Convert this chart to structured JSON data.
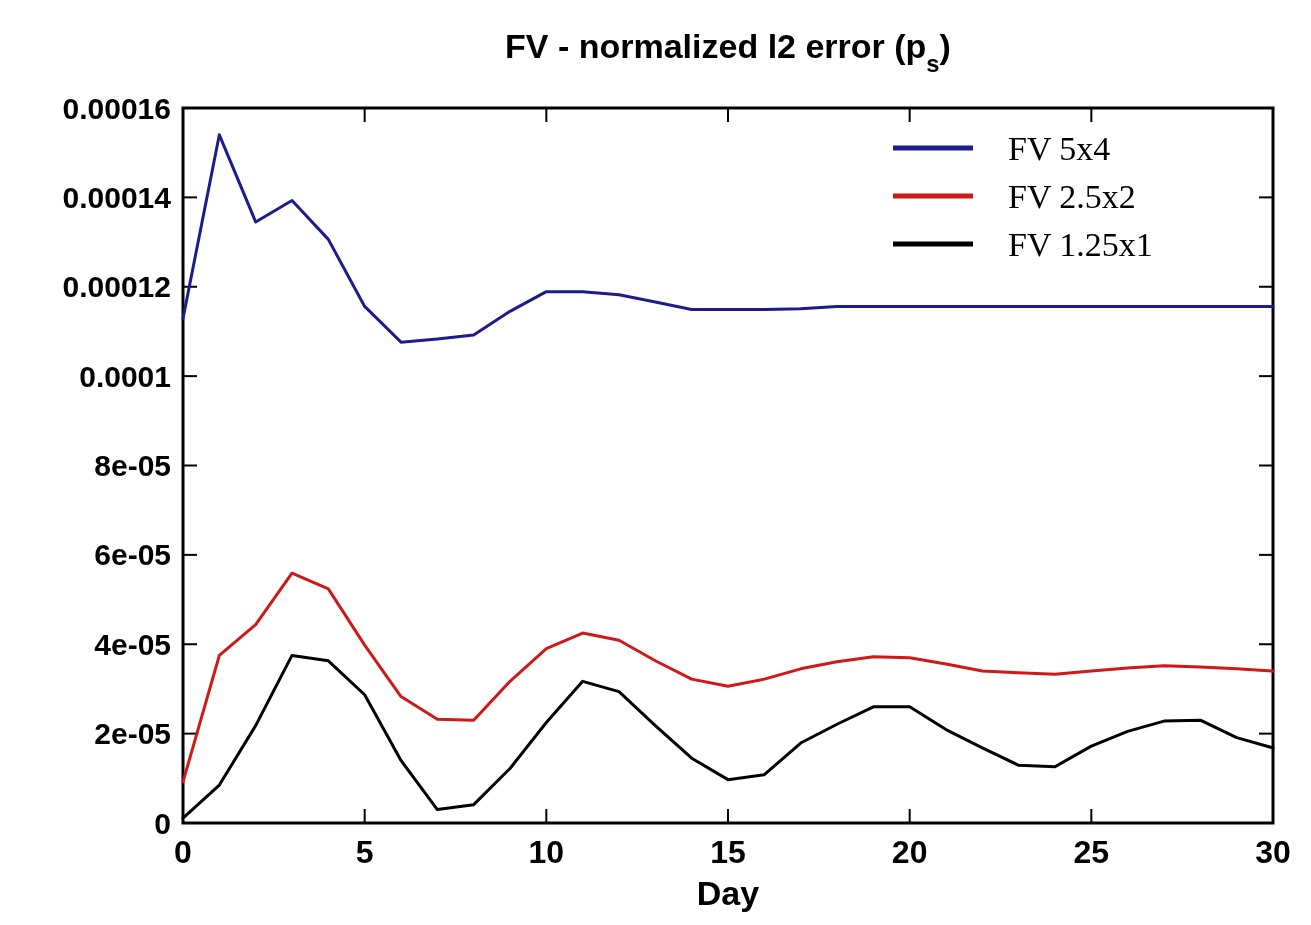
{
  "chart_data": {
    "type": "line",
    "title": "FV - normalized l2 error (p$_{s}$)",
    "xlabel": "Day",
    "x": [
      0,
      1,
      2,
      3,
      4,
      5,
      6,
      7,
      8,
      9,
      10,
      11,
      12,
      13,
      14,
      15,
      16,
      17,
      18,
      19,
      20,
      21,
      22,
      23,
      24,
      25,
      26,
      27,
      28,
      29,
      30
    ],
    "xlim": [
      0,
      30
    ],
    "xticks": [
      0,
      5,
      10,
      15,
      20,
      25,
      30
    ],
    "ylim": [
      0,
      0.00016
    ],
    "yticks": [
      0,
      {
        "value": 2e-05,
        "label": "2e-05"
      },
      {
        "value": 4e-05,
        "label": "4e-05"
      },
      {
        "value": 6e-05,
        "label": "6e-05"
      },
      {
        "value": 8e-05,
        "label": "8e-05"
      },
      0.0001,
      0.00012,
      0.00014,
      0.00016
    ],
    "grid": false,
    "legend": "top right",
    "line_style": "solid",
    "marker": "none",
    "series": [
      {
        "name": "FV 5x4",
        "color": "#1c1c8c",
        "values": [
          0.0001129,
          0.000154,
          0.0001345,
          0.0001393,
          0.0001306,
          0.0001156,
          0.0001076,
          0.0001083,
          0.0001092,
          0.0001145,
          0.0001189,
          0.0001189,
          0.0001182,
          0.0001166,
          0.0001149,
          0.0001149,
          0.0001149,
          0.0001151,
          0.0001156,
          0.0001156,
          0.0001156,
          0.0001156,
          0.0001156,
          0.0001156,
          0.0001156,
          0.0001156,
          0.0001156,
          0.0001156,
          0.0001156,
          0.0001156,
          0.0001156
        ]
      },
      {
        "name": "FV 2.5x2",
        "color": "#d01818",
        "values": [
          9.2e-06,
          3.75e-05,
          4.44e-05,
          5.59e-05,
          5.24e-05,
          3.98e-05,
          2.83e-05,
          2.32e-05,
          2.3e-05,
          3.17e-05,
          3.9e-05,
          4.25e-05,
          4.09e-05,
          3.63e-05,
          3.22e-05,
          3.06e-05,
          3.22e-05,
          3.45e-05,
          3.61e-05,
          3.72e-05,
          3.7e-05,
          3.56e-05,
          3.4e-05,
          3.36e-05,
          3.33e-05,
          3.4e-05,
          3.47e-05,
          3.52e-05,
          3.49e-05,
          3.45e-05,
          3.4e-05
        ]
      },
      {
        "name": "FV 1.25x1",
        "color": "#000000",
        "values": [
          1.1e-06,
          8.5e-06,
          2.18e-05,
          3.75e-05,
          3.63e-05,
          2.87e-05,
          1.4e-05,
          3e-06,
          4.1e-06,
          1.22e-05,
          2.25e-05,
          3.17e-05,
          2.94e-05,
          2.18e-05,
          1.45e-05,
          9.7e-06,
          1.08e-05,
          1.79e-05,
          2.21e-05,
          2.6e-05,
          2.6e-05,
          2.09e-05,
          1.68e-05,
          1.29e-05,
          1.26e-05,
          1.72e-05,
          2.05e-05,
          2.28e-05,
          2.3e-05,
          1.91e-05,
          1.68e-05
        ]
      }
    ]
  }
}
